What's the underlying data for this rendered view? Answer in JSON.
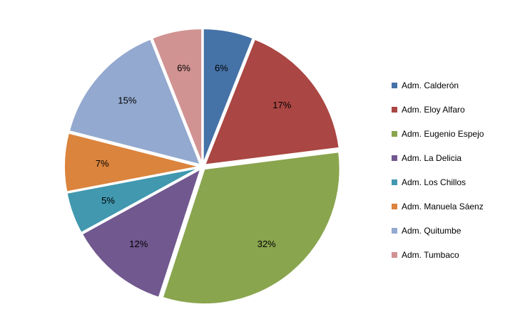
{
  "chart_data": {
    "type": "pie",
    "title": "",
    "legend_position": "right",
    "start_angle_deg": 0,
    "direction": "clockwise",
    "slices": [
      {
        "name": "Adm. Calderón",
        "value": 6,
        "label": "6%",
        "color": "#4572A7"
      },
      {
        "name": "Adm. Eloy Alfaro",
        "value": 17,
        "label": "17%",
        "color": "#AA4643"
      },
      {
        "name": "Adm. Eugenio Espejo",
        "value": 32,
        "label": "32%",
        "color": "#89A54E"
      },
      {
        "name": "Adm. La Delicia",
        "value": 12,
        "label": "12%",
        "color": "#71588F"
      },
      {
        "name": "Adm. Los Chillos",
        "value": 5,
        "label": "5%",
        "color": "#4198AF"
      },
      {
        "name": "Adm. Manuela Sáenz",
        "value": 7,
        "label": "7%",
        "color": "#DB843D"
      },
      {
        "name": "Adm. Quitumbe",
        "value": 15,
        "label": "15%",
        "color": "#93A9CF"
      },
      {
        "name": "Adm. Tumbaco",
        "value": 6,
        "label": "6%",
        "color": "#D19392"
      }
    ]
  }
}
